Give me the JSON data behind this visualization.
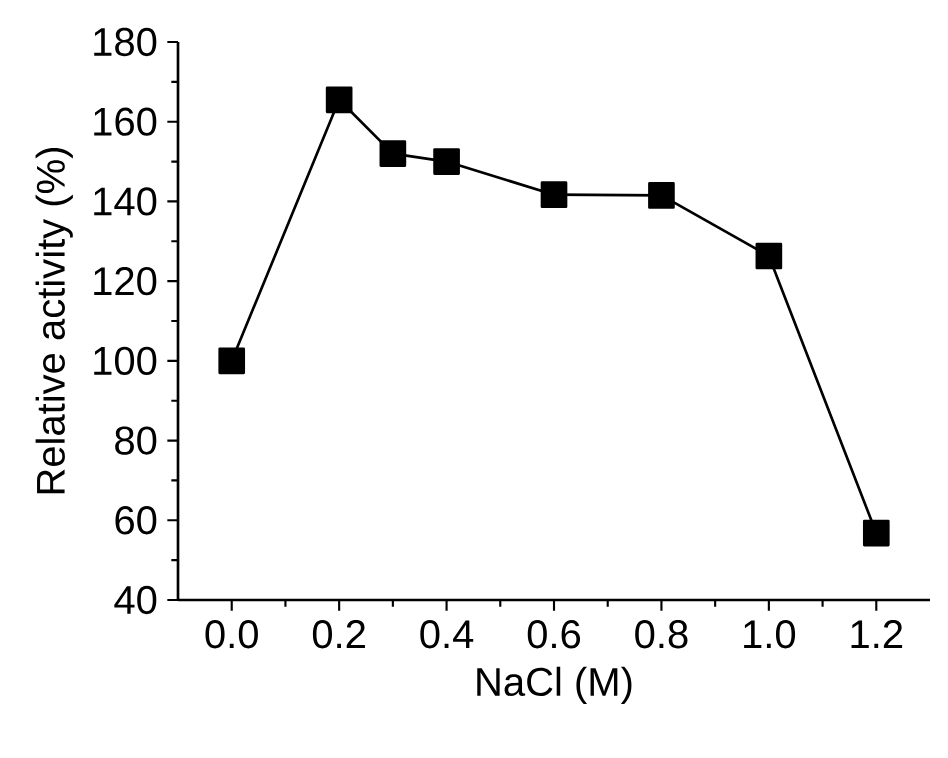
{
  "chart_data": {
    "type": "line",
    "xlabel": "NaCl (M)",
    "ylabel": "Relative activity (%)",
    "x": [
      0.0,
      0.2,
      0.3,
      0.4,
      0.6,
      0.8,
      1.0,
      1.2
    ],
    "series": [
      {
        "color": "#000000",
        "values": [
          100,
          165.5,
          152,
          150,
          141.7,
          141.5,
          126.3,
          56.8
        ]
      }
    ],
    "xlim": [
      -0.1,
      1.3
    ],
    "ylim": [
      40,
      180
    ],
    "xticks": [
      {
        "value": 0,
        "label": "0.0"
      },
      {
        "value": 0.2,
        "label": "0.2"
      },
      {
        "value": 0.4,
        "label": "0.4"
      },
      {
        "value": 0.6,
        "label": "0.6"
      },
      {
        "value": 0.8,
        "label": "0.8"
      },
      {
        "value": 1.0,
        "label": "1.0"
      },
      {
        "value": 1.2,
        "label": "1.2"
      }
    ],
    "yticks": [
      40,
      60,
      80,
      100,
      120,
      140,
      160,
      180
    ],
    "marker": "square",
    "line_style": "solid"
  }
}
